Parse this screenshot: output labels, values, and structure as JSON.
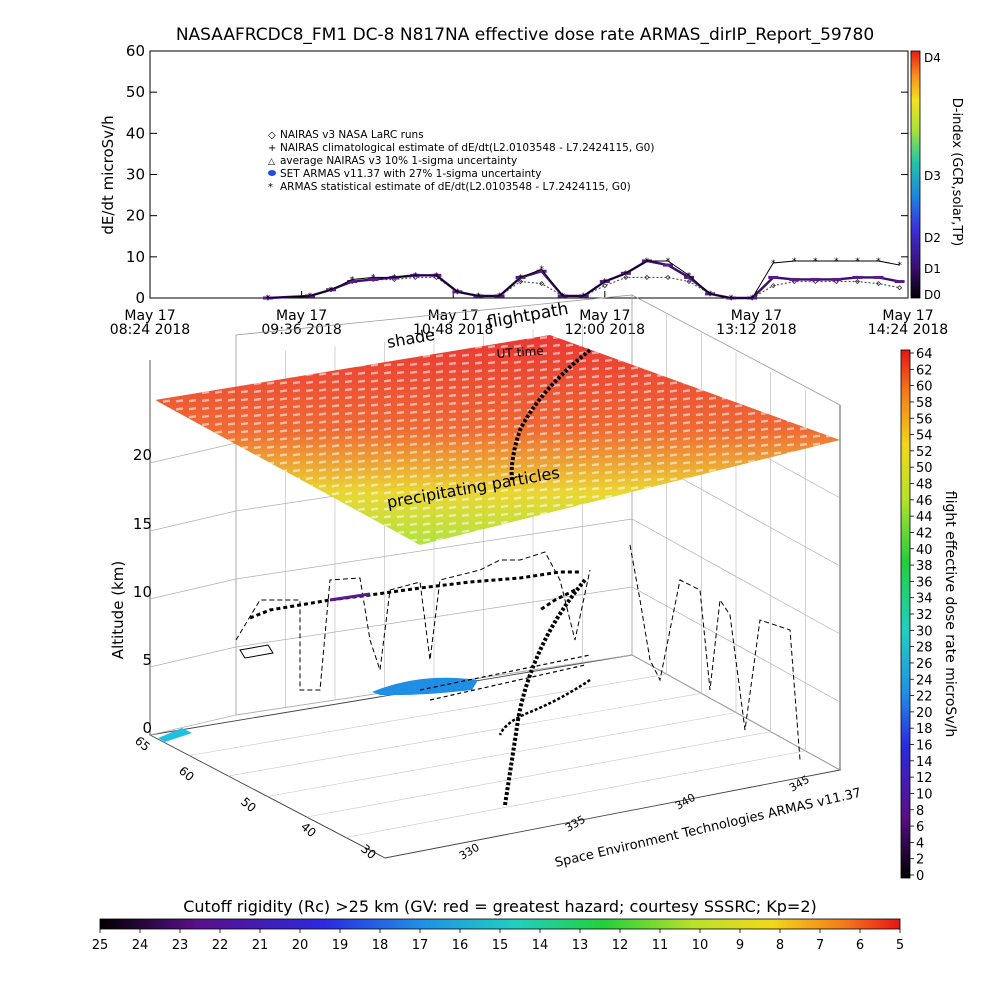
{
  "title": "NASAAFRCDC8_FM1 DC-8    N817NA effective dose rate ARMAS_dirIP_Report_59780",
  "top_chart": {
    "ylabel": "dE/dt microSv/h",
    "y_ticks": [
      "0",
      "10",
      "20",
      "30",
      "40",
      "50",
      "60"
    ],
    "x_ticks": [
      {
        "line1": "May 17",
        "line2": "08:24 2018"
      },
      {
        "line1": "May 17",
        "line2": "09:36 2018"
      },
      {
        "line1": "May 17",
        "line2": "10:48 2018"
      },
      {
        "line1": "May 17",
        "line2": "12:00 2018"
      },
      {
        "line1": "May 17",
        "line2": "13:12 2018"
      },
      {
        "line1": "May 17",
        "line2": "14:24 2018"
      }
    ],
    "legend": [
      "NAIRAS v3 NASA LaRC runs",
      "NAIRAS climatological estimate of dE/dt(L2.0103548 - L7.2424115, G0)",
      "average NAIRAS v3 10% 1-sigma uncertainty",
      "SET ARMAS v11.37 with 27% 1-sigma uncertainty",
      "ARMAS statistical estimate of dE/dt(L2.0103548 - L7.2424115, G0)"
    ],
    "colorbar_label": "D-index (GCR,solar,TP)",
    "colorbar_ticks": [
      "D4",
      "D3",
      "D2",
      "D1",
      "D0"
    ]
  },
  "chart_data": {
    "type": "line",
    "title": "NASAAFRCDC8_FM1 DC-8    N817NA effective dose rate ARMAS_dirIP_Report_59780",
    "ylabel": "dE/dt microSv/h",
    "ylim": [
      0,
      60
    ],
    "x": [
      "09:20",
      "09:40",
      "09:50",
      "10:00",
      "10:10",
      "10:20",
      "10:30",
      "10:40",
      "10:50",
      "11:00",
      "11:10",
      "11:20",
      "11:30",
      "11:40",
      "11:50",
      "12:00",
      "12:10",
      "12:20",
      "12:30",
      "12:40",
      "12:50",
      "13:00",
      "13:10",
      "13:20",
      "13:30",
      "13:40",
      "13:50",
      "14:00",
      "14:10",
      "14:20"
    ],
    "series": [
      {
        "name": "NAIRAS v3 NASA LaRC runs",
        "values": [
          0,
          0.5,
          2,
          4,
          4.5,
          4.5,
          5,
          5,
          1.5,
          0.5,
          0.5,
          4,
          3.5,
          0.5,
          0.5,
          3,
          5,
          5,
          5,
          4,
          1,
          0,
          0,
          3,
          4,
          4,
          4,
          4,
          3.5,
          2.5
        ]
      },
      {
        "name": "SET ARMAS v11.37 with 27% 1-sigma uncertainty",
        "values": [
          0,
          0.5,
          2,
          4,
          4.5,
          5,
          5.5,
          5.5,
          1.5,
          0.5,
          0.5,
          5,
          6.5,
          0.5,
          0.5,
          4,
          6,
          9,
          8,
          5,
          1,
          0,
          0,
          5,
          4.5,
          4.5,
          4.5,
          5,
          5,
          4
        ]
      },
      {
        "name": "ARMAS statistical estimate of dE/dt(L2.0103548 - L7.2424115, G0)",
        "values": [
          0,
          0.5,
          2,
          4.5,
          5,
          5,
          5.5,
          5.5,
          1.5,
          0.5,
          0.5,
          5,
          7,
          0.5,
          0.5,
          4,
          6,
          9,
          9,
          5.5,
          1,
          0,
          0,
          8.5,
          9,
          9,
          9,
          9,
          9,
          8
        ]
      }
    ],
    "colorbar_label": "flight effective dose rate microSv/h"
  },
  "globe": {
    "labels": {
      "shade": "shade",
      "uttime": "UT time",
      "flightpath": "flightpath",
      "precip": "precipitating particles"
    },
    "zlabel": "Altitude (km)",
    "z_ticks": [
      "0",
      "5",
      "10",
      "15",
      "20"
    ],
    "lat_ticks": [
      "60",
      "50",
      "40",
      "30"
    ],
    "lon_ticks": [
      "330",
      "335",
      "340",
      "345"
    ],
    "credit": "Space Environment Technologies ARMAS v11.37",
    "right_colorbar_label": "flight effective dose rate microSv/h",
    "right_colorbar_ticks": [
      "64",
      "62",
      "60",
      "58",
      "56",
      "54",
      "52",
      "50",
      "48",
      "46",
      "44",
      "42",
      "40",
      "38",
      "36",
      "34",
      "32",
      "30",
      "28",
      "26",
      "24",
      "22",
      "20",
      "18",
      "16",
      "14",
      "12",
      "10",
      "8",
      "6",
      "4",
      "2",
      "0"
    ]
  },
  "bottom_bar": {
    "label": "Cutoff rigidity (Rc) >25 km (GV: red = greatest hazard; courtesy SSSRC; Kp=2)",
    "ticks": [
      "25",
      "24",
      "23",
      "22",
      "21",
      "20",
      "19",
      "18",
      "17",
      "16",
      "15",
      "14",
      "13",
      "12",
      "11",
      "10",
      "9",
      "8",
      "7",
      "6",
      "5"
    ]
  }
}
